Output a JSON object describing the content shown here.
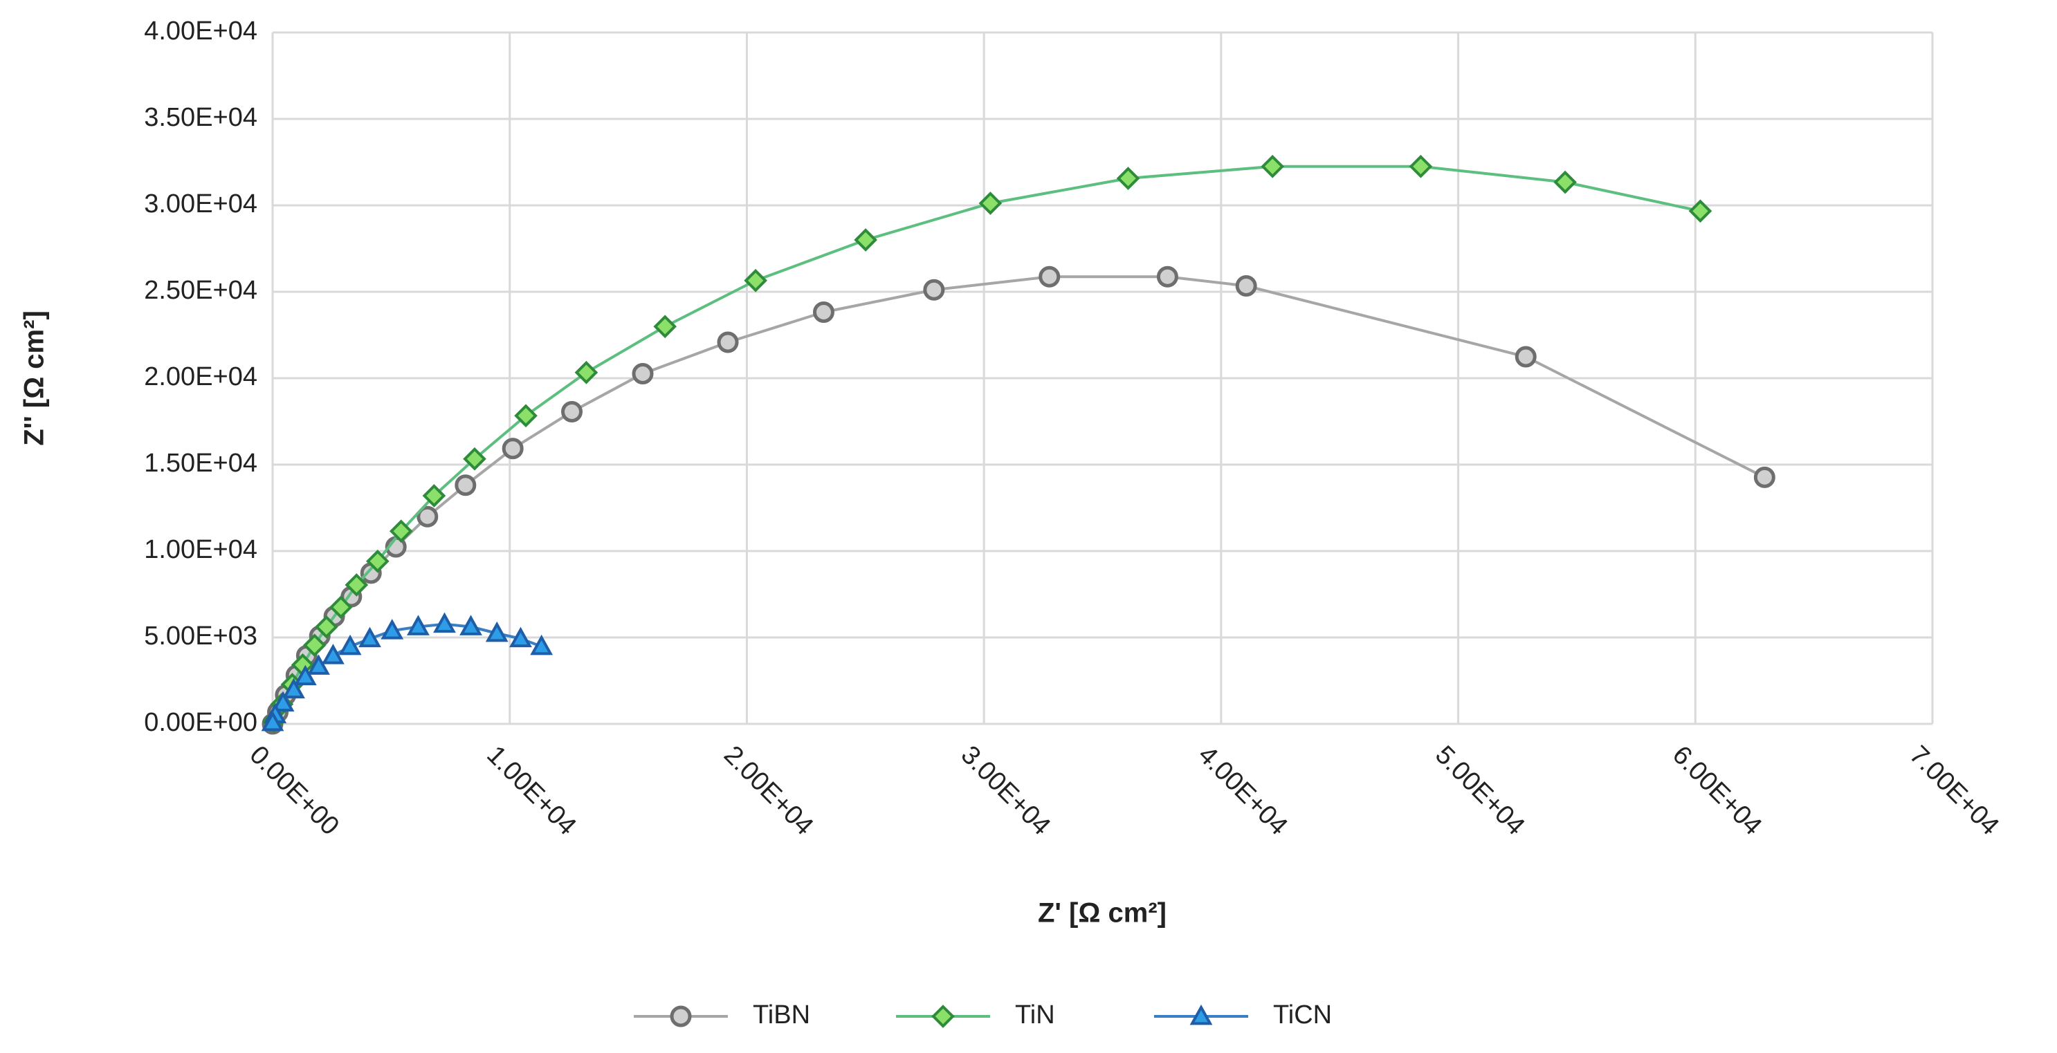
{
  "chart_data": {
    "type": "scatter-line",
    "x_label": "Z' [Ω cm²]",
    "y_label": "Z'' [Ω cm²]",
    "xlim": [
      0,
      70000
    ],
    "ylim": [
      0,
      40000
    ],
    "xticks": [
      {
        "value": 0,
        "label": "0.00E+00"
      },
      {
        "value": 10000,
        "label": "1.00E+04"
      },
      {
        "value": 20000,
        "label": "2.00E+04"
      },
      {
        "value": 30000,
        "label": "3.00E+04"
      },
      {
        "value": 40000,
        "label": "4.00E+04"
      },
      {
        "value": 50000,
        "label": "5.00E+04"
      },
      {
        "value": 60000,
        "label": "6.00E+04"
      },
      {
        "value": 70000,
        "label": "7.00E+04"
      }
    ],
    "yticks": [
      {
        "value": 0,
        "label": "0.00E+00"
      },
      {
        "value": 5000,
        "label": "5.00E+03"
      },
      {
        "value": 10000,
        "label": "1.00E+04"
      },
      {
        "value": 15000,
        "label": "1.50E+04"
      },
      {
        "value": 20000,
        "label": "2.00E+04"
      },
      {
        "value": 25000,
        "label": "2.50E+04"
      },
      {
        "value": 30000,
        "label": "3.00E+04"
      },
      {
        "value": 35000,
        "label": "3.50E+04"
      },
      {
        "value": 40000,
        "label": "4.00E+04"
      }
    ],
    "grid": true,
    "legend": "bottom",
    "series": [
      {
        "name": "TiBN",
        "color": "#a6a6a6",
        "marker": "circle",
        "x": [
          62920,
          52850,
          41060,
          37740,
          32760,
          27890,
          23240,
          19200,
          15610,
          12620,
          10130,
          8135,
          6530,
          5200,
          4150,
          3320,
          2600,
          1990,
          1440,
          1000,
          550,
          220,
          0
        ],
        "values": [
          14265,
          21240,
          25340,
          25870,
          25870,
          25110,
          23820,
          22080,
          20260,
          18060,
          15930,
          13810,
          11990,
          10240,
          8725,
          7360,
          6220,
          5080,
          3945,
          2810,
          1670,
          680,
          0
        ]
      },
      {
        "name": "TiN",
        "color": "#5cbf7f",
        "marker": "diamond",
        "x": [
          60210,
          54510,
          48420,
          42170,
          36080,
          30270,
          25010,
          20370,
          16550,
          13230,
          10680,
          8520,
          6810,
          5420,
          4430,
          3540,
          2880,
          2270,
          1770,
          1270,
          830,
          390,
          55
        ],
        "values": [
          29670,
          31340,
          32250,
          32250,
          31560,
          30120,
          28000,
          25650,
          22990,
          20330,
          17830,
          15330,
          13200,
          11150,
          9410,
          8040,
          6750,
          5610,
          4550,
          3410,
          2280,
          1140,
          150
        ]
      },
      {
        "name": "TiCN",
        "color": "#3a7fc4",
        "marker": "triangle",
        "x": [
          11340,
          10460,
          9460,
          8360,
          7250,
          6140,
          5040,
          4100,
          3270,
          2550,
          1940,
          1380,
          890,
          440,
          110,
          0
        ],
        "values": [
          4480,
          4930,
          5240,
          5620,
          5770,
          5620,
          5390,
          4930,
          4480,
          3950,
          3340,
          2730,
          1970,
          1210,
          530,
          80
        ]
      }
    ]
  }
}
